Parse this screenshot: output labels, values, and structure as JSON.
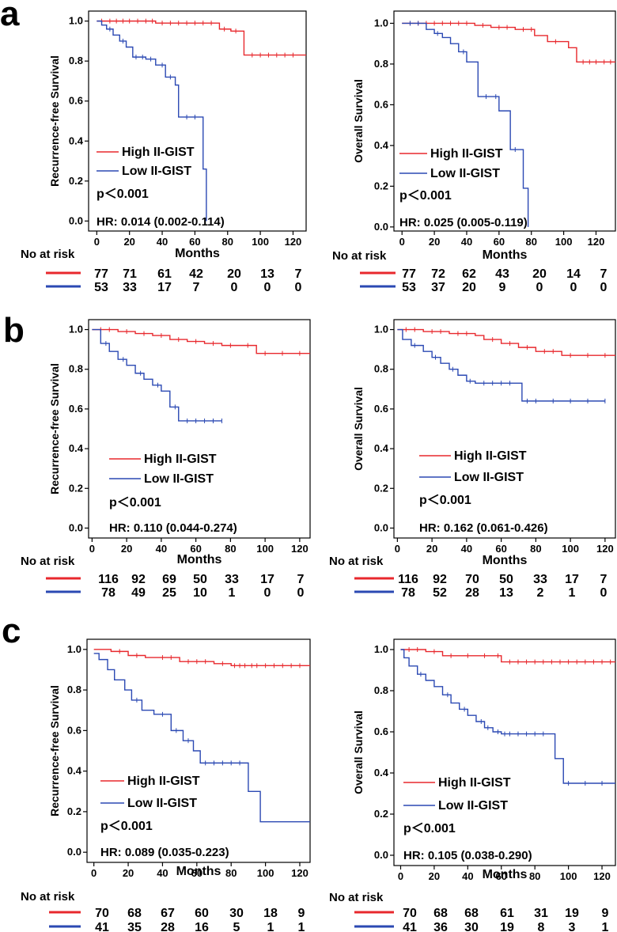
{
  "colors": {
    "high": "#e8282d",
    "low": "#2b49b3",
    "axis": "#000000"
  },
  "labels": {
    "panel_a": "a",
    "panel_b": "b",
    "panel_c": "c",
    "no_at_risk": "No at risk"
  },
  "chart_data": [
    {
      "id": "a-rfs",
      "type": "line",
      "ylabel": "Recurrence-free Survival",
      "xlabel": "Months",
      "xlim": [
        -5,
        128
      ],
      "ylim": [
        -0.05,
        1.05
      ],
      "xticks": [
        0,
        20,
        40,
        60,
        80,
        100,
        120
      ],
      "yticks": [
        "0.0",
        "0.2",
        "0.4",
        "0.6",
        "0.8",
        "1.0"
      ],
      "legend": [
        "High II-GIST",
        "Low II-GIST"
      ],
      "p": "p＜0.001",
      "hr": "HR: 0.014 (0.002-0.114)",
      "series": [
        {
          "name": "High II-GIST",
          "color_key": "high",
          "x": [
            0,
            36,
            58,
            75,
            82,
            90,
            128
          ],
          "y": [
            1.0,
            0.99,
            0.99,
            0.96,
            0.95,
            0.83,
            0.83
          ],
          "censor_x": [
            3,
            8,
            12,
            16,
            20,
            25,
            30,
            34,
            40,
            45,
            50,
            55,
            60,
            65,
            70,
            78,
            85,
            95,
            100,
            105,
            110,
            115,
            120
          ]
        },
        {
          "name": "Low II-GIST",
          "color_key": "low",
          "x": [
            0,
            3,
            6,
            10,
            14,
            18,
            22,
            30,
            36,
            42,
            48,
            50,
            62,
            65,
            67
          ],
          "y": [
            1.0,
            0.98,
            0.96,
            0.93,
            0.9,
            0.87,
            0.82,
            0.81,
            0.78,
            0.72,
            0.68,
            0.52,
            0.52,
            0.26,
            0.0
          ],
          "censor_x": [
            8,
            16,
            24,
            28,
            33,
            40,
            45,
            55,
            60
          ]
        }
      ],
      "risk": {
        "high": [
          "77",
          "71",
          "61",
          "42",
          "20",
          "13",
          "7"
        ],
        "low": [
          "53",
          "33",
          "17",
          "7",
          "0",
          "0",
          "0"
        ]
      }
    },
    {
      "id": "a-os",
      "type": "line",
      "ylabel": "Overall Survival",
      "xlabel": "Months",
      "xlim": [
        -5,
        132
      ],
      "ylim": [
        -0.02,
        1.06
      ],
      "xticks": [
        0,
        20,
        40,
        60,
        80,
        100,
        120
      ],
      "yticks": [
        "0.0",
        "0.2",
        "0.4",
        "0.6",
        "0.8",
        "1.0"
      ],
      "legend": [
        "High II-GIST",
        "Low II-GIST"
      ],
      "p": "p＜0.001",
      "hr": "HR: 0.025 (0.005-0.119)",
      "series": [
        {
          "name": "High II-GIST",
          "color_key": "high",
          "x": [
            0,
            45,
            55,
            70,
            82,
            90,
            103,
            108,
            132
          ],
          "y": [
            1.0,
            0.99,
            0.98,
            0.97,
            0.94,
            0.91,
            0.88,
            0.81,
            0.81
          ],
          "censor_x": [
            5,
            10,
            15,
            20,
            25,
            30,
            35,
            40,
            50,
            60,
            65,
            75,
            80,
            95,
            112,
            116,
            120,
            125,
            129
          ]
        },
        {
          "name": "Low II-GIST",
          "color_key": "low",
          "x": [
            0,
            15,
            20,
            25,
            30,
            35,
            40,
            47,
            55,
            60,
            64,
            67,
            75,
            78
          ],
          "y": [
            1.0,
            0.97,
            0.95,
            0.93,
            0.9,
            0.86,
            0.81,
            0.64,
            0.64,
            0.57,
            0.57,
            0.38,
            0.19,
            0.0
          ],
          "censor_x": [
            5,
            10,
            22,
            38,
            52,
            58,
            70
          ]
        }
      ],
      "risk": {
        "high": [
          "77",
          "72",
          "62",
          "43",
          "20",
          "14",
          "7"
        ],
        "low": [
          "53",
          "37",
          "20",
          "9",
          "0",
          "0",
          "0"
        ]
      }
    },
    {
      "id": "b-rfs",
      "type": "line",
      "ylabel": "Recurrence-free Survival",
      "xlabel": "Months",
      "xlim": [
        -2,
        126
      ],
      "ylim": [
        -0.05,
        1.05
      ],
      "xticks": [
        0,
        20,
        40,
        60,
        80,
        100,
        120
      ],
      "yticks": [
        "0.0",
        "0.2",
        "0.4",
        "0.6",
        "0.8",
        "1.0"
      ],
      "legend": [
        "High II-GIST",
        "Low II-GIST"
      ],
      "p": "p＜0.001",
      "hr": "HR: 0.110 (0.044-0.274)",
      "series": [
        {
          "name": "High II-GIST",
          "color_key": "high",
          "x": [
            0,
            15,
            25,
            35,
            45,
            55,
            65,
            75,
            85,
            95,
            126
          ],
          "y": [
            1.0,
            0.99,
            0.98,
            0.97,
            0.95,
            0.94,
            0.93,
            0.92,
            0.92,
            0.88,
            0.88
          ],
          "censor_x": [
            5,
            10,
            20,
            30,
            40,
            50,
            60,
            70,
            80,
            90,
            100,
            110,
            120
          ]
        },
        {
          "name": "Low II-GIST",
          "color_key": "low",
          "x": [
            0,
            5,
            10,
            15,
            20,
            25,
            30,
            35,
            40,
            45,
            50,
            75
          ],
          "y": [
            1.0,
            0.93,
            0.89,
            0.85,
            0.82,
            0.78,
            0.75,
            0.72,
            0.69,
            0.61,
            0.54,
            0.54
          ],
          "censor_x": [
            8,
            18,
            28,
            38,
            48,
            55,
            60,
            65,
            70,
            75
          ]
        }
      ],
      "risk": {
        "high": [
          "116",
          "92",
          "69",
          "50",
          "33",
          "17",
          "7"
        ],
        "low": [
          "78",
          "49",
          "25",
          "10",
          "1",
          "0",
          "0"
        ]
      }
    },
    {
      "id": "b-os",
      "type": "line",
      "ylabel": "Overall Survival",
      "xlabel": "Months",
      "xlim": [
        -2,
        126
      ],
      "ylim": [
        -0.05,
        1.05
      ],
      "xticks": [
        0,
        20,
        40,
        60,
        80,
        100,
        120
      ],
      "yticks": [
        "0.0",
        "0.2",
        "0.4",
        "0.6",
        "0.8",
        "1.0"
      ],
      "legend": [
        "High II-GIST",
        "Low II-GIST"
      ],
      "p": "p＜0.001",
      "hr": "HR: 0.162 (0.061-0.426)",
      "series": [
        {
          "name": "High II-GIST",
          "color_key": "high",
          "x": [
            0,
            15,
            30,
            45,
            50,
            60,
            70,
            80,
            95,
            126
          ],
          "y": [
            1.0,
            0.99,
            0.98,
            0.97,
            0.95,
            0.93,
            0.91,
            0.89,
            0.87,
            0.87
          ],
          "censor_x": [
            5,
            10,
            20,
            25,
            35,
            40,
            55,
            65,
            75,
            85,
            90,
            100,
            110,
            120
          ]
        },
        {
          "name": "Low II-GIST",
          "color_key": "low",
          "x": [
            0,
            3,
            8,
            15,
            20,
            25,
            30,
            35,
            40,
            45,
            72,
            120
          ],
          "y": [
            1.0,
            0.95,
            0.92,
            0.89,
            0.86,
            0.83,
            0.8,
            0.77,
            0.74,
            0.73,
            0.64,
            0.64
          ],
          "censor_x": [
            10,
            22,
            32,
            42,
            50,
            55,
            60,
            65,
            75,
            80,
            90,
            100,
            110,
            120
          ]
        }
      ],
      "risk": {
        "high": [
          "116",
          "92",
          "70",
          "50",
          "33",
          "17",
          "7"
        ],
        "low": [
          "78",
          "52",
          "28",
          "13",
          "2",
          "1",
          "0"
        ]
      }
    },
    {
      "id": "c-rfs",
      "type": "line",
      "ylabel": "Recurrence-free Survival",
      "xlabel": "Months",
      "xlim": [
        -4,
        126
      ],
      "ylim": [
        -0.05,
        1.05
      ],
      "xticks": [
        0,
        20,
        40,
        60,
        80,
        100,
        120
      ],
      "yticks": [
        "0.0",
        "0.2",
        "0.4",
        "0.6",
        "0.8",
        "1.0"
      ],
      "legend": [
        "High II-GIST",
        "Low II-GIST"
      ],
      "p": "p＜0.001",
      "hr": "HR: 0.089 (0.035-0.223)",
      "series": [
        {
          "name": "High II-GIST",
          "color_key": "high",
          "x": [
            0,
            5,
            10,
            20,
            30,
            50,
            70,
            80,
            126
          ],
          "y": [
            1.0,
            1.0,
            0.99,
            0.97,
            0.96,
            0.94,
            0.93,
            0.92,
            0.92
          ],
          "censor_x": [
            15,
            25,
            40,
            45,
            55,
            60,
            65,
            75,
            82,
            85,
            88,
            92,
            95,
            100,
            105,
            110,
            115,
            120
          ]
        },
        {
          "name": "Low II-GIST",
          "color_key": "low",
          "x": [
            0,
            3,
            8,
            12,
            18,
            22,
            28,
            35,
            45,
            52,
            58,
            62,
            90,
            97,
            126
          ],
          "y": [
            0.98,
            0.95,
            0.9,
            0.85,
            0.8,
            0.75,
            0.7,
            0.68,
            0.6,
            0.55,
            0.5,
            0.44,
            0.3,
            0.15,
            0.15
          ],
          "censor_x": [
            25,
            40,
            48,
            55,
            65,
            70,
            75,
            80,
            85
          ]
        }
      ],
      "risk": {
        "high": [
          "70",
          "68",
          "67",
          "60",
          "30",
          "18",
          "9"
        ],
        "low": [
          "41",
          "35",
          "28",
          "16",
          "5",
          "1",
          "1"
        ]
      }
    },
    {
      "id": "c-os",
      "type": "line",
      "ylabel": "Overall Survival",
      "xlabel": "Months",
      "xlim": [
        -4,
        128
      ],
      "ylim": [
        -0.05,
        1.05
      ],
      "xticks": [
        0,
        20,
        40,
        60,
        80,
        100,
        120
      ],
      "yticks": [
        "0.0",
        "0.2",
        "0.4",
        "0.6",
        "0.8",
        "1.0"
      ],
      "legend": [
        "High II-GIST",
        "Low II-GIST"
      ],
      "p": "p＜0.001",
      "hr": "HR: 0.105 (0.038-0.290)",
      "series": [
        {
          "name": "High II-GIST",
          "color_key": "high",
          "x": [
            0,
            15,
            25,
            55,
            60,
            128
          ],
          "y": [
            1.0,
            0.99,
            0.97,
            0.97,
            0.94,
            0.94
          ],
          "censor_x": [
            5,
            10,
            20,
            30,
            40,
            50,
            58,
            65,
            70,
            75,
            80,
            85,
            90,
            95,
            100,
            105,
            110,
            115,
            120,
            125
          ]
        },
        {
          "name": "Low II-GIST",
          "color_key": "low",
          "x": [
            0,
            2,
            5,
            10,
            15,
            20,
            25,
            30,
            35,
            40,
            45,
            50,
            55,
            60,
            92,
            97,
            128
          ],
          "y": [
            1.0,
            0.96,
            0.92,
            0.88,
            0.85,
            0.82,
            0.78,
            0.74,
            0.71,
            0.68,
            0.65,
            0.62,
            0.6,
            0.59,
            0.47,
            0.35,
            0.35
          ],
          "censor_x": [
            12,
            28,
            38,
            48,
            52,
            58,
            62,
            65,
            70,
            75,
            80,
            85,
            100,
            110,
            120
          ]
        }
      ],
      "risk": {
        "high": [
          "70",
          "68",
          "68",
          "61",
          "31",
          "19",
          "9"
        ],
        "low": [
          "41",
          "36",
          "30",
          "19",
          "8",
          "3",
          "1"
        ]
      }
    }
  ]
}
